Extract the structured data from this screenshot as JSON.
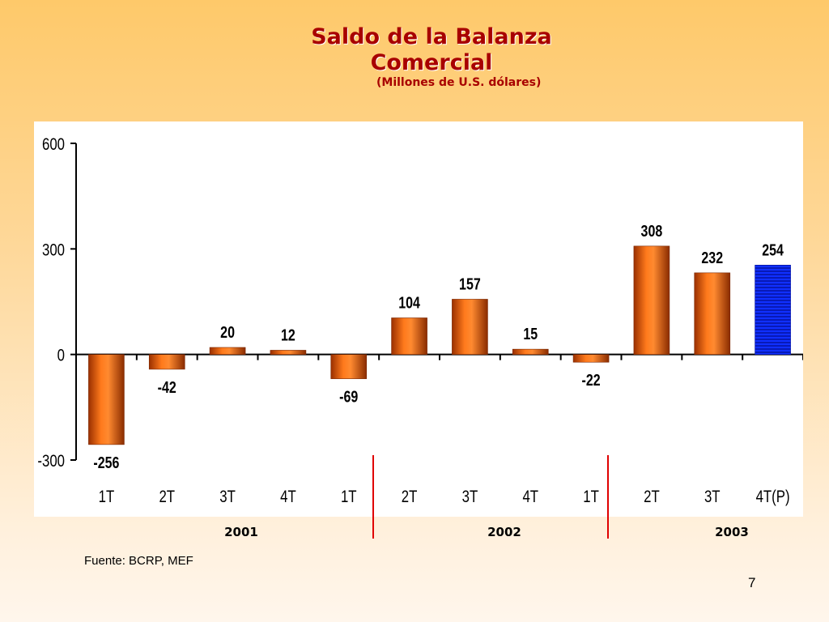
{
  "slide": {
    "title_line1": "Saldo de la Balanza",
    "title_line2": "Comercial",
    "subtitle": "(Millones de U.S. dólares)",
    "source": "Fuente: BCRP, MEF",
    "page_number": "7"
  },
  "chart_data": {
    "type": "bar",
    "title": "Saldo de la Balanza Comercial",
    "subtitle": "(Millones de U.S. dólares)",
    "categories": [
      "1T",
      "2T",
      "3T",
      "4T",
      "1T",
      "2T",
      "3T",
      "4T",
      "1T",
      "2T",
      "3T",
      "4T(P)"
    ],
    "groups": [
      {
        "label": "2001",
        "categories": [
          "1T",
          "2T",
          "3T",
          "4T"
        ]
      },
      {
        "label": "2002",
        "categories": [
          "1T",
          "2T",
          "3T",
          "4T"
        ]
      },
      {
        "label": "2003",
        "categories": [
          "1T",
          "2T",
          "3T",
          "4T(P)"
        ]
      }
    ],
    "values": [
      -256,
      -42,
      20,
      12,
      -69,
      104,
      157,
      15,
      -22,
      308,
      232,
      254
    ],
    "data_labels": [
      "-256",
      "-42",
      "20",
      "12",
      "-69",
      "104",
      "157",
      "15",
      "-22",
      "308",
      "232",
      "254"
    ],
    "highlight_index": 11,
    "bar_color": "#e8560a",
    "highlight_color": "#0a1fe0",
    "separator_color": "#e00000",
    "yticks": [
      600,
      300,
      0,
      -300
    ],
    "ylim": [
      -300,
      600
    ],
    "xlabel": "",
    "ylabel": "",
    "grid": false,
    "legend": "none"
  }
}
